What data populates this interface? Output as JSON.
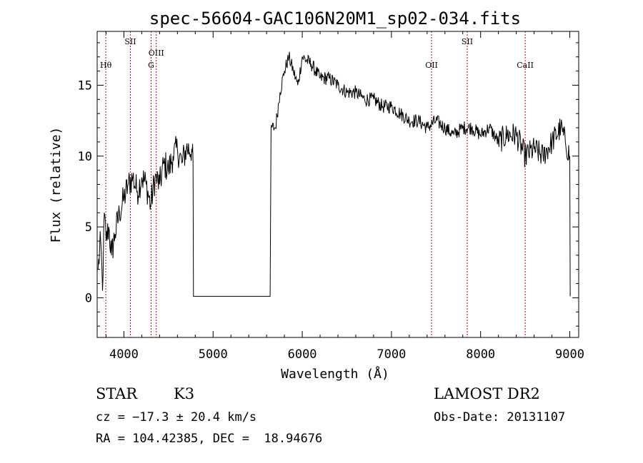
{
  "chart_data": {
    "type": "line",
    "title": "spec-56604-GAC106N20M1_sp02-034.fits",
    "xlabel": "Wavelength (Å)",
    "ylabel": "Flux (relative)",
    "xlim": [
      3700,
      9100
    ],
    "ylim": [
      -2.8,
      18.8
    ],
    "xticks": [
      4000,
      5000,
      6000,
      7000,
      8000,
      9000
    ],
    "yticks": [
      0,
      5,
      10,
      15
    ],
    "grid": false,
    "line_color": "#000000",
    "marker_color": "#cc0000",
    "gap": [
      4780,
      5640
    ],
    "series": [
      {
        "x": [
          3710,
          3740,
          3760,
          3780,
          3800,
          3830,
          3860,
          3900,
          3950,
          4000,
          4050,
          4100,
          4150,
          4200,
          4250,
          4300,
          4350,
          4400,
          4450,
          4500,
          4550,
          4600,
          4650,
          4700,
          4760,
          4775,
          4780,
          5640,
          5650,
          5700,
          5750,
          5800,
          5850,
          5900,
          5950,
          6000,
          6100,
          6200,
          6300,
          6400,
          6500,
          6600,
          6700,
          6800,
          6900,
          7000,
          7100,
          7200,
          7300,
          7400,
          7500,
          7600,
          7700,
          7800,
          7900,
          8000,
          8100,
          8200,
          8300,
          8400,
          8500,
          8600,
          8700,
          8800,
          8900,
          8950,
          9000,
          9005
        ],
        "y": [
          2,
          4,
          0.5,
          6,
          4,
          5,
          3,
          4.5,
          6,
          7,
          8,
          8.5,
          7.5,
          8.5,
          8,
          6.5,
          8.5,
          8,
          9.5,
          9,
          10,
          10.5,
          9.5,
          10.5,
          10.5,
          9.5,
          0.1,
          0.1,
          12,
          12,
          14.5,
          16,
          17,
          16,
          15,
          17,
          16.5,
          15.5,
          15.5,
          15,
          14.5,
          14.5,
          14,
          14,
          13.5,
          13.5,
          13,
          12.5,
          12.5,
          12,
          12.5,
          12,
          11.5,
          12,
          12,
          11.5,
          12,
          11,
          11.5,
          11.5,
          10,
          10.5,
          10,
          11,
          12,
          11,
          10,
          0.1
        ]
      }
    ],
    "line_markers": [
      {
        "label": "Hθ",
        "x": 3797,
        "tier": "low"
      },
      {
        "label": "SII",
        "x": 4072,
        "tier": "high"
      },
      {
        "label": "OIII",
        "x": 4363,
        "tier": "mid"
      },
      {
        "label": "G",
        "x": 4305,
        "tier": "low"
      },
      {
        "label": "OII",
        "x": 7450,
        "tier": "low"
      },
      {
        "label": "SII",
        "x": 7850,
        "tier": "high"
      },
      {
        "label": "CaII",
        "x": 8500,
        "tier": "low"
      }
    ]
  },
  "footer": {
    "object_class": "STAR",
    "subclass": "K3",
    "velocity": "cz = −17.3 ± 20.4 km/s",
    "coords": "RA = 104.42385, DEC =  18.94676",
    "survey": "LAMOST DR2",
    "obs_date": "Obs-Date: 20131107"
  }
}
